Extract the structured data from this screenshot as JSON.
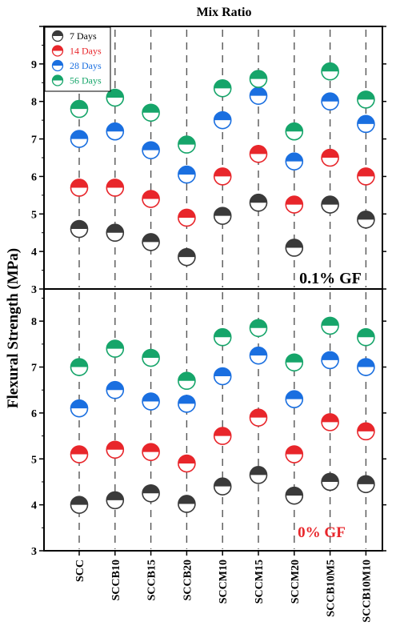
{
  "chart_data": {
    "type": "scatter",
    "title": "Mix Ratio",
    "ylabel": "Flexural Strength (MPa)",
    "categories": [
      "SCC",
      "SCCB10",
      "SCCB15",
      "SCCB20",
      "SCCM10",
      "SCCM15",
      "SCCM20",
      "SCCB10M5",
      "SCCB10M10"
    ],
    "legend": {
      "placement": "top-left",
      "entries": [
        {
          "label": "7 Days",
          "color": "#3a3a3a"
        },
        {
          "label": "14 Days",
          "color": "#e8262b"
        },
        {
          "label": "28 Days",
          "color": "#1a6fe0"
        },
        {
          "label": "56 Days",
          "color": "#16a56a"
        }
      ]
    },
    "panels": [
      {
        "label": "0.1% GF",
        "label_color": "#000000",
        "ylim": [
          3,
          10
        ],
        "yticks": [
          3,
          4,
          5,
          6,
          7,
          8,
          9,
          10
        ],
        "series": [
          {
            "name": "7 Days",
            "color": "#3a3a3a",
            "values": [
              4.6,
              4.5,
              4.25,
              3.85,
              4.95,
              5.3,
              4.1,
              5.25,
              4.85
            ]
          },
          {
            "name": "14 Days",
            "color": "#e8262b",
            "values": [
              5.7,
              5.7,
              5.4,
              4.9,
              6.0,
              6.6,
              5.25,
              6.5,
              6.0
            ]
          },
          {
            "name": "28 Days",
            "color": "#1a6fe0",
            "values": [
              7.0,
              7.2,
              6.7,
              6.05,
              7.5,
              8.15,
              6.4,
              8.0,
              7.4
            ]
          },
          {
            "name": "56 Days",
            "color": "#16a56a",
            "values": [
              7.8,
              8.1,
              7.7,
              6.85,
              8.35,
              8.6,
              7.2,
              8.8,
              8.05
            ]
          }
        ]
      },
      {
        "label": "0% GF",
        "label_color": "#e8262b",
        "ylim": [
          3,
          8.7
        ],
        "yticks": [
          3,
          4,
          5,
          6,
          7,
          8
        ],
        "series": [
          {
            "name": "7 Days",
            "color": "#3a3a3a",
            "values": [
              4.0,
              4.1,
              4.25,
              4.02,
              4.4,
              4.65,
              4.2,
              4.5,
              4.45
            ]
          },
          {
            "name": "14 Days",
            "color": "#e8262b",
            "values": [
              5.1,
              5.2,
              5.15,
              4.9,
              5.5,
              5.9,
              5.1,
              5.8,
              5.6
            ]
          },
          {
            "name": "28 Days",
            "color": "#1a6fe0",
            "values": [
              6.1,
              6.5,
              6.25,
              6.2,
              6.8,
              7.25,
              6.3,
              7.15,
              7.0
            ]
          },
          {
            "name": "56 Days",
            "color": "#16a56a",
            "values": [
              7.0,
              7.4,
              7.2,
              6.7,
              7.65,
              7.85,
              7.1,
              7.9,
              7.65
            ]
          }
        ]
      }
    ],
    "grid": false
  }
}
